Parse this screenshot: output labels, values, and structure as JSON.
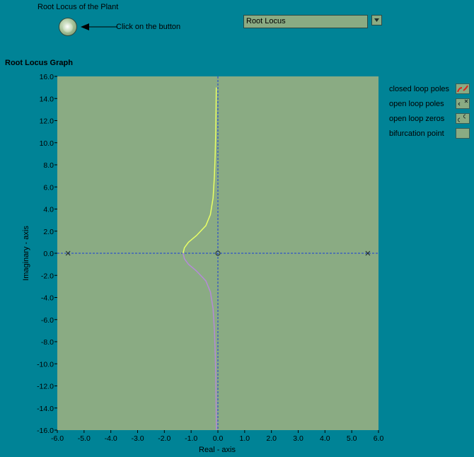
{
  "header": {
    "title": "Root Locus of the Plant",
    "button_hint": "Click on the button"
  },
  "selector": {
    "value": "Root Locus"
  },
  "graph": {
    "title": "Root Locus Graph",
    "legend": [
      {
        "label": "closed loop poles",
        "icon": "closed-loop-poles-icon"
      },
      {
        "label": "open loop poles",
        "icon": "open-loop-poles-icon"
      },
      {
        "label": "open loop zeros",
        "icon": "open-loop-zeros-icon"
      },
      {
        "label": "bifurcation point",
        "icon": "bifurcation-point-icon"
      }
    ]
  },
  "colors": {
    "background": "#008396",
    "plot_background": "#8aab83",
    "upper_branch": "#e8ff66",
    "lower_branch": "#b58ad8",
    "axis_lines": "#1a3fd6"
  },
  "chart_data": {
    "type": "scatter",
    "title": "",
    "xlabel": "Real - axis",
    "ylabel": "Imaginary - axis",
    "xlim": [
      -6.0,
      6.0
    ],
    "ylim": [
      -16.0,
      16.0
    ],
    "x_ticks": [
      "-6.0",
      "-5.0",
      "-4.0",
      "-3.0",
      "-2.0",
      "-1.0",
      "0.0",
      "1.0",
      "2.0",
      "3.0",
      "4.0",
      "5.0",
      "6.0"
    ],
    "y_ticks": [
      "16.0",
      "14.0",
      "12.0",
      "10.0",
      "8.0",
      "6.0",
      "4.0",
      "2.0",
      "0.0",
      "-2.0",
      "-4.0",
      "-6.0",
      "-8.0",
      "-10.0",
      "-12.0",
      "-14.0",
      "-16.0"
    ],
    "grid": false,
    "open_loop_poles": [
      [
        -5.6,
        0
      ],
      [
        5.6,
        0
      ]
    ],
    "open_loop_zeros": [
      [
        0.0,
        0
      ]
    ],
    "series": [
      {
        "values": [
          [
            -1.3,
            0.0
          ],
          [
            -1.25,
            0.5
          ],
          [
            -1.1,
            1.0
          ],
          [
            -0.8,
            1.6
          ],
          [
            -0.45,
            2.5
          ],
          [
            -0.28,
            3.5
          ],
          [
            -0.18,
            5.0
          ],
          [
            -0.13,
            7.0
          ],
          [
            -0.1,
            9.0
          ],
          [
            -0.08,
            11.0
          ],
          [
            -0.07,
            13.0
          ],
          [
            -0.06,
            15.0
          ]
        ]
      },
      {
        "values": [
          [
            -1.3,
            0.0
          ],
          [
            -1.25,
            -0.5
          ],
          [
            -1.1,
            -1.0
          ],
          [
            -0.8,
            -1.6
          ],
          [
            -0.45,
            -2.5
          ],
          [
            -0.28,
            -3.5
          ],
          [
            -0.18,
            -5.0
          ],
          [
            -0.13,
            -7.0
          ],
          [
            -0.1,
            -9.0
          ],
          [
            -0.08,
            -11.0
          ],
          [
            -0.07,
            -13.0
          ],
          [
            -0.06,
            -15.0
          ],
          [
            -0.05,
            -16.0
          ]
        ]
      }
    ]
  }
}
